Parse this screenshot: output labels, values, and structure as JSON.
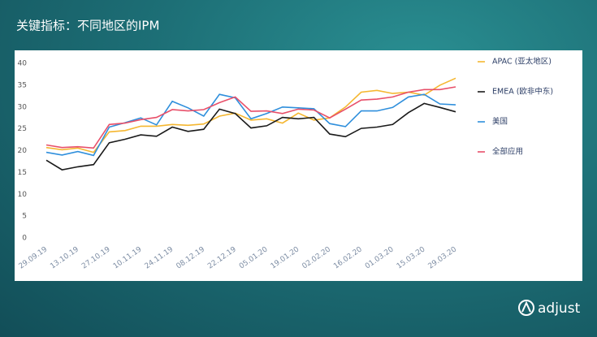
{
  "page_title": "关键指标：不同地区的IPM",
  "logo": "adjust",
  "chart_data": {
    "type": "line",
    "categories": [
      "29.09.19",
      null,
      "13.10.19",
      null,
      "27.10.19",
      null,
      "10.11.19",
      null,
      "24.11.19",
      null,
      "08.12.19",
      null,
      "22.12.19",
      null,
      "05.01.20",
      null,
      "19.01.20",
      null,
      "02.02.20",
      null,
      "16.02.20",
      null,
      "01.03.20",
      null,
      "15.03.20",
      null,
      "29.03.20"
    ],
    "series": [
      {
        "name": "APAC (亚太地区)",
        "color": "#f5b731",
        "values": [
          20.7,
          20.2,
          20.6,
          19.6,
          24.3,
          24.6,
          25.6,
          25.6,
          26,
          25.8,
          26.1,
          27.9,
          28.6,
          27,
          27.3,
          26.3,
          28.6,
          27,
          27.5,
          30,
          33.4,
          33.8,
          33.1,
          33.4,
          32.7,
          35,
          36.6
        ]
      },
      {
        "name": "EMEA (欧非中东)",
        "color": "#1a1a1a",
        "values": [
          17.8,
          15.6,
          16.3,
          16.8,
          21.8,
          22.6,
          23.6,
          23.3,
          25.4,
          24.4,
          24.9,
          29.5,
          28.5,
          25.2,
          25.7,
          27.6,
          27.3,
          27.6,
          23.8,
          23.2,
          25.1,
          25.4,
          26,
          28.7,
          30.8,
          29.9,
          28.9
        ]
      },
      {
        "name": "美国",
        "color": "#2f8fdc",
        "values": [
          19.6,
          19,
          19.8,
          18.9,
          25.4,
          26.4,
          27.5,
          25.9,
          31.3,
          29.8,
          27.9,
          32.9,
          32.1,
          27.3,
          28.5,
          30,
          29.8,
          29.6,
          26.2,
          25.5,
          29.1,
          29.1,
          29.9,
          32.3,
          32.9,
          30.7,
          30.5
        ]
      },
      {
        "name": "全部应用",
        "color": "#e8506a",
        "values": [
          21.3,
          20.7,
          20.9,
          20.6,
          26,
          26.3,
          27.1,
          27.6,
          29.4,
          29.1,
          29.4,
          31,
          32.3,
          29,
          29.1,
          28.5,
          29.5,
          29.3,
          27.5,
          29.5,
          31.6,
          31.8,
          32.3,
          33.4,
          34,
          34,
          34.6
        ]
      }
    ],
    "ylim": [
      0,
      40
    ],
    "yticks": [
      0,
      5,
      10,
      15,
      20,
      25,
      30,
      35,
      40
    ],
    "grid": false,
    "legend": "right"
  }
}
